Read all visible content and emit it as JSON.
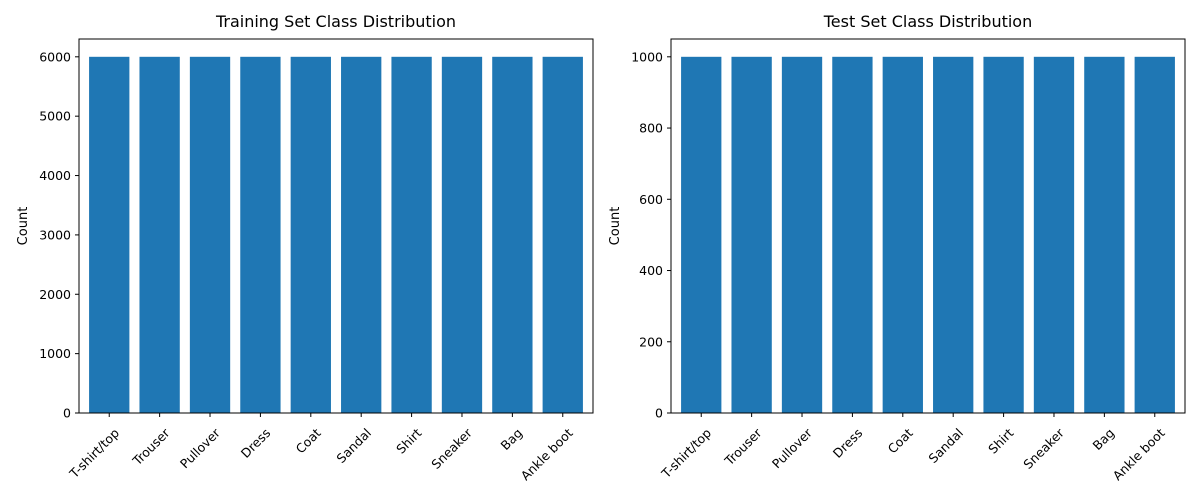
{
  "chart_data": [
    {
      "type": "bar",
      "title": "Training Set Class Distribution",
      "xlabel": "",
      "ylabel": "Count",
      "categories": [
        "T-shirt/top",
        "Trouser",
        "Pullover",
        "Dress",
        "Coat",
        "Sandal",
        "Shirt",
        "Sneaker",
        "Bag",
        "Ankle boot"
      ],
      "values": [
        6000,
        6000,
        6000,
        6000,
        6000,
        6000,
        6000,
        6000,
        6000,
        6000
      ],
      "ylim": [
        0,
        6300
      ],
      "yticks": [
        0,
        1000,
        2000,
        3000,
        4000,
        5000,
        6000
      ],
      "grid": false,
      "bar_color": "#1f77b4"
    },
    {
      "type": "bar",
      "title": "Test Set Class Distribution",
      "xlabel": "",
      "ylabel": "Count",
      "categories": [
        "T-shirt/top",
        "Trouser",
        "Pullover",
        "Dress",
        "Coat",
        "Sandal",
        "Shirt",
        "Sneaker",
        "Bag",
        "Ankle boot"
      ],
      "values": [
        1000,
        1000,
        1000,
        1000,
        1000,
        1000,
        1000,
        1000,
        1000,
        1000
      ],
      "ylim": [
        0,
        1050
      ],
      "yticks": [
        0,
        200,
        400,
        600,
        800,
        1000
      ],
      "grid": false,
      "bar_color": "#1f77b4"
    }
  ]
}
